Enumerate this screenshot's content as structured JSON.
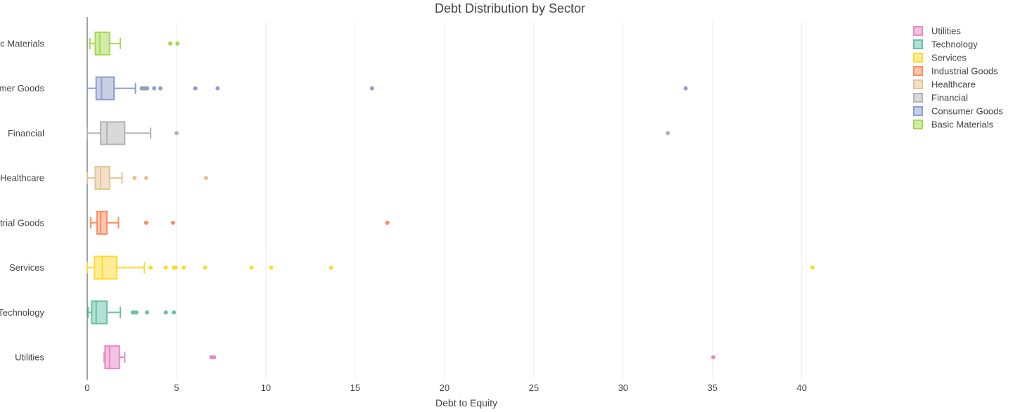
{
  "chart_data": {
    "type": "box",
    "orientation": "horizontal",
    "title": "Debt Distribution by Sector",
    "xlabel": "Debt to Equity",
    "ylabel": "",
    "xlim": [
      0,
      44.5
    ],
    "xticks": [
      0,
      5,
      10,
      15,
      20,
      25,
      30,
      35,
      40
    ],
    "grid": true,
    "legend_position": "top-right",
    "series": [
      {
        "name": "Utilities",
        "color": "#e78ac3",
        "whisker_low": 0.95,
        "q1": 1.0,
        "median": 1.25,
        "q3": 1.8,
        "whisker_high": 2.1,
        "outliers": [
          6.95,
          7.1,
          35.05
        ]
      },
      {
        "name": "Technology",
        "color": "#66c2a5",
        "whisker_low": 0.05,
        "q1": 0.25,
        "median": 0.5,
        "q3": 1.1,
        "whisker_high": 1.85,
        "outliers": [
          2.55,
          2.65,
          2.75,
          3.35,
          4.4,
          4.85
        ]
      },
      {
        "name": "Services",
        "color": "#ffd92f",
        "whisker_low": 0.0,
        "q1": 0.4,
        "median": 0.85,
        "q3": 1.65,
        "whisker_high": 3.2,
        "outliers": [
          3.55,
          4.4,
          4.85,
          4.95,
          5.4,
          6.6,
          9.2,
          10.3,
          13.65,
          40.6
        ]
      },
      {
        "name": "Industrial Goods",
        "color": "#fc8d62",
        "whisker_low": 0.2,
        "q1": 0.55,
        "median": 0.75,
        "q3": 1.1,
        "whisker_high": 1.75,
        "outliers": [
          3.3,
          4.8,
          16.8
        ]
      },
      {
        "name": "Healthcare",
        "color": "#e5c494",
        "whisker_low": 0.0,
        "q1": 0.45,
        "median": 0.75,
        "q3": 1.25,
        "whisker_high": 1.95,
        "outliers": [
          2.65,
          3.3,
          6.65
        ]
      },
      {
        "name": "Financial",
        "color": "#b3b3b3",
        "whisker_low": 0.0,
        "q1": 0.75,
        "median": 1.1,
        "q3": 2.1,
        "whisker_high": 3.55,
        "outliers": [
          5.0,
          32.5
        ]
      },
      {
        "name": "Consumer Goods",
        "color": "#8da0cb",
        "whisker_low": 0.0,
        "q1": 0.5,
        "median": 0.8,
        "q3": 1.5,
        "whisker_high": 2.7,
        "outliers": [
          3.05,
          3.15,
          3.25,
          3.35,
          3.75,
          4.1,
          6.05,
          7.3,
          15.95,
          33.5
        ]
      },
      {
        "name": "Basic Materials",
        "color": "#a6d854",
        "whisker_low": 0.15,
        "q1": 0.45,
        "median": 0.7,
        "q3": 1.25,
        "whisker_high": 1.85,
        "outliers": [
          4.65,
          5.05
        ]
      }
    ],
    "category_labels": [
      "Utilities",
      "Technology",
      "Services",
      "Industrial Goods",
      "Healthcare",
      "Financial",
      "Consumer Goods",
      "Basic Materials"
    ]
  }
}
